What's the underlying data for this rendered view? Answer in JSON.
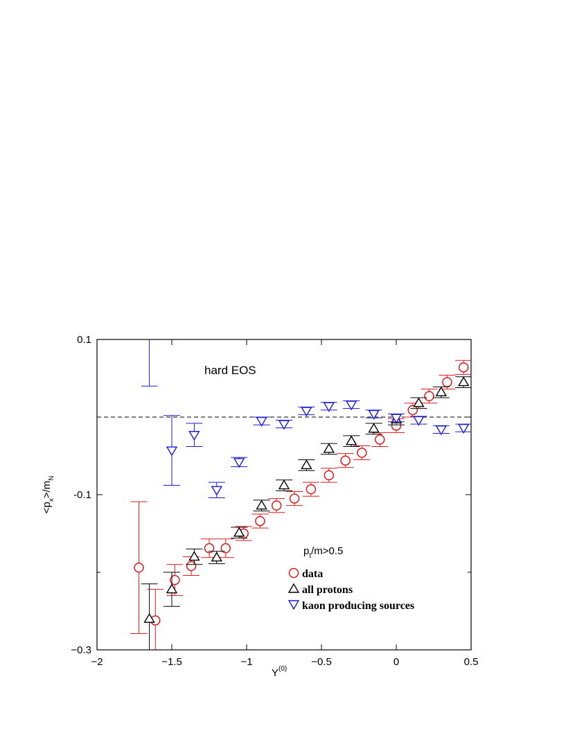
{
  "chart_data": {
    "type": "scatter",
    "annotation": "hard EOS",
    "xlabel": "Y",
    "xlabel_sup": "(0)",
    "ylabel_main": "<p",
    "ylabel_sub1": "x",
    "ylabel_mid": ">/m",
    "ylabel_sub2": "N",
    "cut_main": "p",
    "cut_sub": "t",
    "cut_rest": "/m>0.5",
    "xlim": [
      -2,
      0.5
    ],
    "ylim": [
      -0.3,
      0.1
    ],
    "x_ticks": [
      {
        "value": -2,
        "label": "−2"
      },
      {
        "value": -1.5,
        "label": "−1.5"
      },
      {
        "value": -1,
        "label": "−1"
      },
      {
        "value": -0.5,
        "label": "−0.5"
      },
      {
        "value": 0,
        "label": "0"
      },
      {
        "value": 0.5,
        "label": "0.5"
      }
    ],
    "y_ticks": [
      {
        "value": 0.1,
        "label": "0.1"
      },
      {
        "value": -0.1,
        "label": "-0.1"
      },
      {
        "value": -0.3,
        "label": "−0.3"
      }
    ],
    "y_minor_ticks": [
      0.0,
      -0.2
    ],
    "reference_line": {
      "y": 0.0,
      "style": "dashed"
    },
    "legend_position": "bottom-right",
    "series": [
      {
        "name": "data",
        "marker": "circle",
        "color": "#e01818",
        "points": [
          {
            "x": -1.72,
            "y": -0.194,
            "err": 0.085
          },
          {
            "x": -1.61,
            "y": -0.262,
            "err": 0.04
          },
          {
            "x": -1.48,
            "y": -0.21,
            "err": 0.02
          },
          {
            "x": -1.37,
            "y": -0.192,
            "err": 0.012
          },
          {
            "x": -1.25,
            "y": -0.169,
            "err": 0.012
          },
          {
            "x": -1.14,
            "y": -0.169,
            "err": 0.012
          },
          {
            "x": -1.02,
            "y": -0.15,
            "err": 0.009
          },
          {
            "x": -0.91,
            "y": -0.134,
            "err": 0.009
          },
          {
            "x": -0.8,
            "y": -0.114,
            "err": 0.009
          },
          {
            "x": -0.68,
            "y": -0.105,
            "err": 0.009
          },
          {
            "x": -0.57,
            "y": -0.093,
            "err": 0.009
          },
          {
            "x": -0.45,
            "y": -0.075,
            "err": 0.009
          },
          {
            "x": -0.34,
            "y": -0.056,
            "err": 0.009
          },
          {
            "x": -0.23,
            "y": -0.046,
            "err": 0.009
          },
          {
            "x": -0.11,
            "y": -0.029,
            "err": 0.009
          },
          {
            "x": 0.0,
            "y": -0.011,
            "err": 0.009
          },
          {
            "x": 0.11,
            "y": 0.009,
            "err": 0.009
          },
          {
            "x": 0.22,
            "y": 0.027,
            "err": 0.009
          },
          {
            "x": 0.34,
            "y": 0.045,
            "err": 0.009
          },
          {
            "x": 0.45,
            "y": 0.064,
            "err": 0.009
          }
        ]
      },
      {
        "name": "all protons",
        "marker": "triangle-up",
        "color": "#000000",
        "points": [
          {
            "x": -1.65,
            "y": -0.26,
            "err": 0.045
          },
          {
            "x": -1.5,
            "y": -0.222,
            "err": 0.022
          },
          {
            "x": -1.35,
            "y": -0.18,
            "err": 0.01
          },
          {
            "x": -1.2,
            "y": -0.181,
            "err": 0.008
          },
          {
            "x": -1.05,
            "y": -0.149,
            "err": 0.007
          },
          {
            "x": -0.9,
            "y": -0.114,
            "err": 0.007
          },
          {
            "x": -0.75,
            "y": -0.088,
            "err": 0.007
          },
          {
            "x": -0.6,
            "y": -0.062,
            "err": 0.007
          },
          {
            "x": -0.45,
            "y": -0.041,
            "err": 0.007
          },
          {
            "x": -0.3,
            "y": -0.031,
            "err": 0.007
          },
          {
            "x": -0.15,
            "y": -0.015,
            "err": 0.007
          },
          {
            "x": 0.0,
            "y": -0.003,
            "err": 0.007
          },
          {
            "x": 0.15,
            "y": 0.018,
            "err": 0.007
          },
          {
            "x": 0.3,
            "y": 0.032,
            "err": 0.007
          },
          {
            "x": 0.45,
            "y": 0.045,
            "err": 0.007
          }
        ]
      },
      {
        "name": "kaon producing sources",
        "marker": "triangle-down",
        "color": "#1a1ad8",
        "points": [
          {
            "x": -1.65,
            "y": 0.16,
            "err": 0.12
          },
          {
            "x": -1.5,
            "y": -0.043,
            "err": 0.045
          },
          {
            "x": -1.35,
            "y": -0.023,
            "err": 0.015
          },
          {
            "x": -1.2,
            "y": -0.094,
            "err": 0.01
          },
          {
            "x": -1.05,
            "y": -0.058,
            "err": 0.006
          },
          {
            "x": -0.9,
            "y": -0.005,
            "err": 0.005
          },
          {
            "x": -0.75,
            "y": -0.009,
            "err": 0.005
          },
          {
            "x": -0.6,
            "y": 0.008,
            "err": 0.005
          },
          {
            "x": -0.45,
            "y": 0.014,
            "err": 0.005
          },
          {
            "x": -0.3,
            "y": 0.016,
            "err": 0.005
          },
          {
            "x": -0.15,
            "y": 0.004,
            "err": 0.005
          },
          {
            "x": 0.0,
            "y": -0.001,
            "err": 0.005
          },
          {
            "x": 0.15,
            "y": -0.004,
            "err": 0.005
          },
          {
            "x": 0.3,
            "y": -0.016,
            "err": 0.005
          },
          {
            "x": 0.45,
            "y": -0.014,
            "err": 0.005
          }
        ]
      }
    ]
  }
}
